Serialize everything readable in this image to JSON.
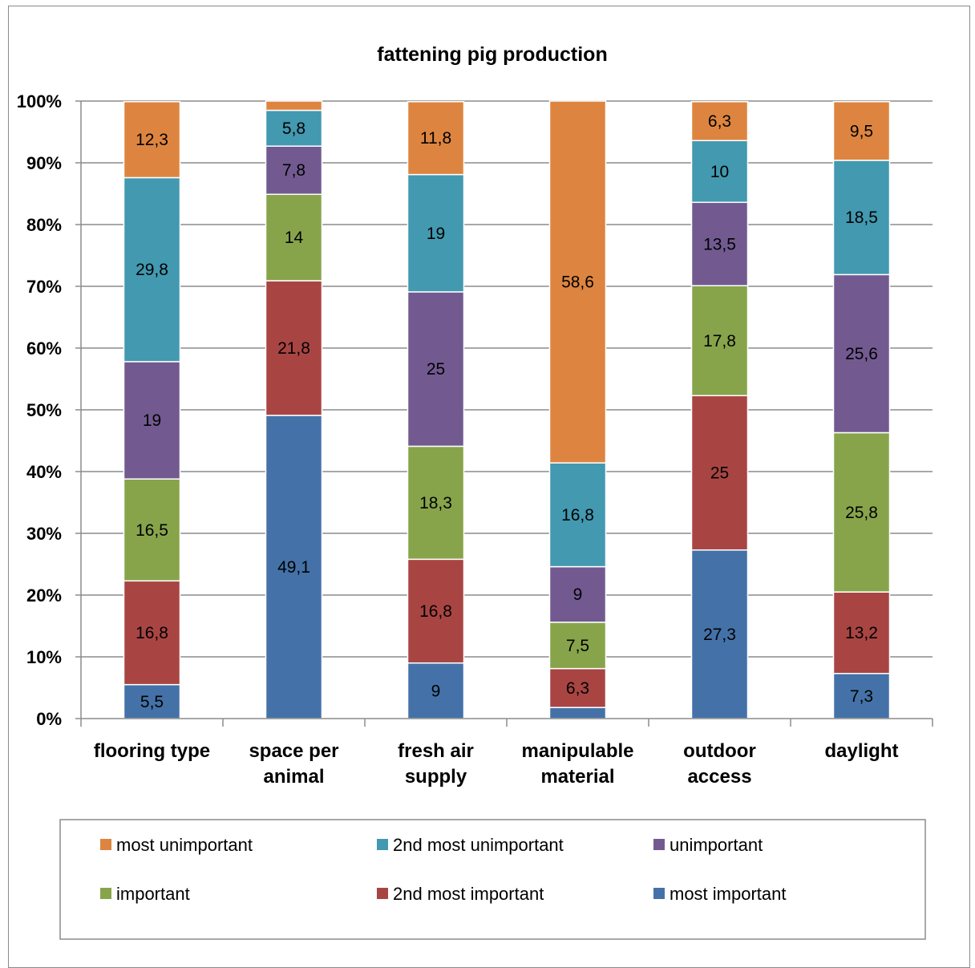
{
  "chart_data": {
    "type": "bar",
    "stacked": true,
    "title": "fattening pig production",
    "xlabel": "",
    "ylabel": "",
    "categories": [
      [
        "flooring type"
      ],
      [
        "space per",
        "animal"
      ],
      [
        "fresh air",
        "supply"
      ],
      [
        "manipulable",
        "material"
      ],
      [
        "outdoor",
        "access"
      ],
      [
        "daylight"
      ]
    ],
    "ylim": [
      0,
      100
    ],
    "yticks": [
      "0%",
      "10%",
      "20%",
      "30%",
      "40%",
      "50%",
      "60%",
      "70%",
      "80%",
      "90%",
      "100%"
    ],
    "grid": true,
    "legend_position": "bottom",
    "series": [
      {
        "name": "most important",
        "color": "#4472a8",
        "values": [
          5.5,
          49.1,
          9,
          1.8,
          27.3,
          7.3
        ],
        "labels": [
          "5,5",
          "49,1",
          "9",
          "",
          "27,3",
          "7,3"
        ]
      },
      {
        "name": "2nd most important",
        "color": "#a84543",
        "values": [
          16.8,
          21.8,
          16.8,
          6.3,
          25,
          13.2
        ],
        "labels": [
          "16,8",
          "21,8",
          "16,8",
          "6,3",
          "25",
          "13,2"
        ]
      },
      {
        "name": "important",
        "color": "#87a44b",
        "values": [
          16.5,
          14,
          18.3,
          7.5,
          17.8,
          25.8
        ],
        "labels": [
          "16,5",
          "14",
          "18,3",
          "7,5",
          "17,8",
          "25,8"
        ]
      },
      {
        "name": "unimportant",
        "color": "#725a91",
        "values": [
          19,
          7.8,
          25,
          9,
          13.5,
          25.6
        ],
        "labels": [
          "19",
          "7,8",
          "25",
          "9",
          "13,5",
          "25,6"
        ]
      },
      {
        "name": "2nd most unimportant",
        "color": "#4299b0",
        "values": [
          29.8,
          5.8,
          19,
          16.8,
          10,
          18.5
        ],
        "labels": [
          "29,8",
          "5,8",
          "19",
          "16,8",
          "10",
          "18,5"
        ]
      },
      {
        "name": "most unimportant",
        "color": "#dd8540",
        "values": [
          12.3,
          1.5,
          11.8,
          58.6,
          6.3,
          9.5
        ],
        "labels": [
          "12,3",
          "",
          "11,8",
          "58,6",
          "6,3",
          "9,5"
        ]
      }
    ],
    "legend_order": [
      "most unimportant",
      "2nd most unimportant",
      "unimportant",
      "important",
      "2nd most important",
      "most important"
    ]
  }
}
